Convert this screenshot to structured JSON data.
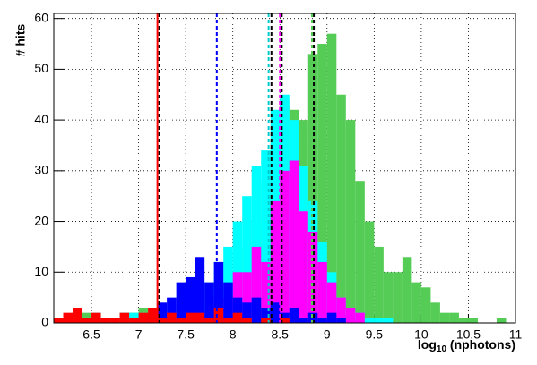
{
  "chart_data": {
    "type": "histogram",
    "y_label": "# hits",
    "x_label": {
      "main": "log",
      "sub": "10",
      "rest": " (nphotons)"
    },
    "bins": [
      6.1,
      6.2,
      6.3,
      6.4,
      6.5,
      6.6,
      6.7,
      6.8,
      6.9,
      7.0,
      7.1,
      7.2,
      7.3,
      7.4,
      7.5,
      7.6,
      7.7,
      7.8,
      7.9,
      8.0,
      8.1,
      8.2,
      8.3,
      8.4,
      8.5,
      8.6,
      8.7,
      8.8,
      8.9,
      9.0,
      9.1,
      9.2,
      9.3,
      9.4,
      9.5,
      9.6,
      9.7,
      9.8,
      9.9,
      10.0,
      10.1,
      10.2,
      10.3,
      10.4,
      10.5,
      10.6,
      10.7,
      10.8,
      10.9,
      11.0
    ],
    "series": [
      {
        "color": "#55cc55",
        "values": [
          0,
          0,
          2,
          2,
          1,
          1,
          0,
          2,
          2,
          3,
          2,
          1,
          2,
          1,
          2,
          3,
          5,
          5,
          5,
          10,
          15,
          20,
          28,
          36,
          44,
          42,
          40,
          53,
          55,
          57,
          45,
          40,
          28,
          20,
          15,
          10,
          10,
          13,
          8,
          7,
          4,
          2,
          2,
          1,
          1,
          0,
          0,
          1,
          0
        ]
      },
      {
        "color": "#00ffff",
        "values": [
          0,
          0,
          0,
          1,
          2,
          1,
          1,
          2,
          2,
          2,
          1,
          2,
          1,
          2,
          3,
          5,
          8,
          12,
          15,
          20,
          25,
          31,
          34,
          42,
          45,
          40,
          31,
          24,
          16,
          10,
          5,
          3,
          2,
          1,
          1,
          1,
          0,
          0,
          0,
          0,
          0,
          0,
          0,
          0,
          0,
          0,
          0,
          0,
          0
        ]
      },
      {
        "color": "#ff00ff",
        "values": [
          0,
          0,
          0,
          0,
          0,
          0,
          0,
          0,
          0,
          0,
          0,
          0,
          0,
          0,
          0,
          0,
          2,
          5,
          5,
          10,
          10,
          15,
          12,
          24,
          30,
          32,
          22,
          18,
          12,
          8,
          5,
          3,
          2,
          0,
          0,
          0,
          0,
          0,
          0,
          0,
          0,
          0,
          0,
          0,
          0,
          0,
          0,
          0,
          0
        ]
      },
      {
        "color": "#0000ff",
        "values": [
          0,
          0,
          0,
          0,
          1,
          0,
          0,
          0,
          0,
          1,
          2,
          4,
          5,
          8,
          9,
          13,
          8,
          12,
          8,
          5,
          4,
          5,
          3,
          4,
          2,
          3,
          1,
          2,
          1,
          2,
          1,
          0,
          0,
          0,
          0,
          0,
          0,
          0,
          0,
          0,
          0,
          0,
          0,
          0,
          0,
          0,
          0,
          0,
          0
        ]
      },
      {
        "color": "#ff0000",
        "values": [
          1,
          2,
          3,
          1,
          2,
          1,
          1,
          2,
          1,
          2,
          3,
          1,
          2,
          1,
          2,
          2,
          1,
          3,
          1,
          2,
          1,
          0,
          1,
          0,
          1,
          0,
          0,
          0,
          0,
          0,
          0,
          0,
          0,
          0,
          0,
          0,
          0,
          0,
          0,
          0,
          0,
          0,
          0,
          0,
          0,
          0,
          0,
          0,
          0
        ]
      }
    ],
    "mean_lines": [
      {
        "value": 7.2,
        "color": "#ff0000",
        "dashed": false
      },
      {
        "value": 7.22,
        "color": "#000000",
        "dashed": true
      },
      {
        "value": 7.83,
        "color": "#0000ff",
        "dashed": true
      },
      {
        "value": 8.38,
        "color": "#00cccc",
        "dashed": true
      },
      {
        "value": 8.41,
        "color": "#000000",
        "dashed": true
      },
      {
        "value": 8.5,
        "color": "#ff00ff",
        "dashed": true
      },
      {
        "value": 8.52,
        "color": "#000000",
        "dashed": true
      },
      {
        "value": 8.84,
        "color": "#55cc55",
        "dashed": true
      },
      {
        "value": 8.86,
        "color": "#000000",
        "dashed": true
      }
    ],
    "xlim": [
      6.1,
      11.0
    ],
    "ylim": [
      0,
      61
    ],
    "xticks": [
      6.5,
      7,
      7.5,
      8,
      8.5,
      9,
      9.5,
      10,
      10.5,
      11
    ],
    "yticks": [
      0,
      10,
      20,
      30,
      40,
      50,
      60
    ],
    "grid": true
  }
}
